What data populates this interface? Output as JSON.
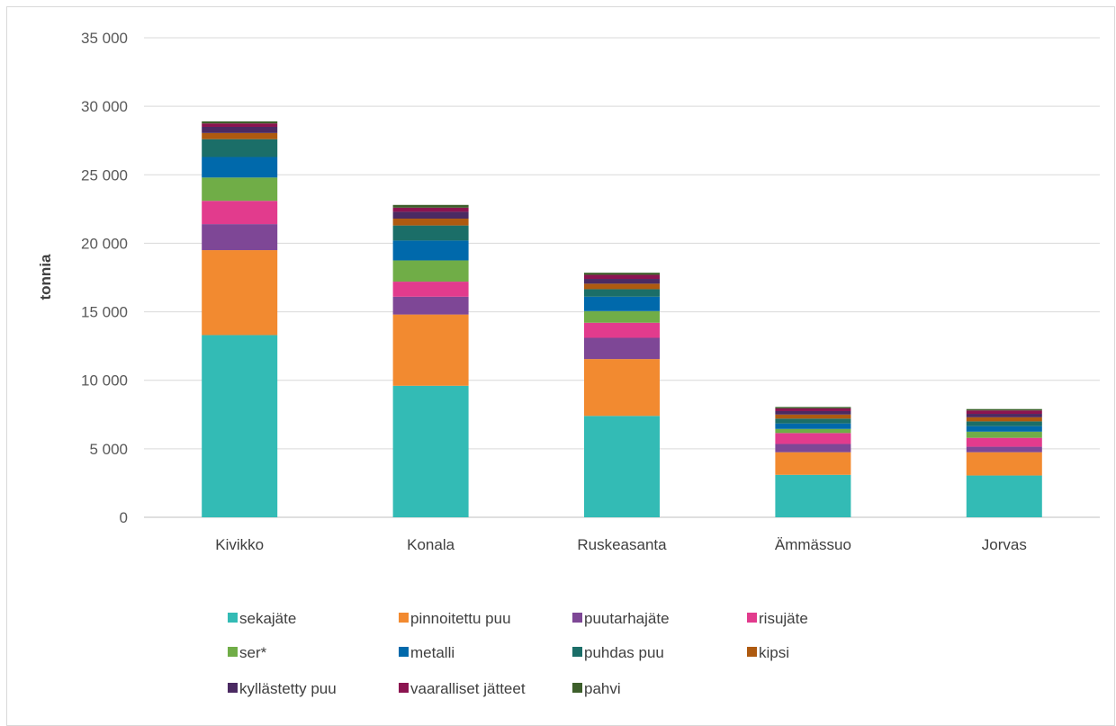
{
  "chart_data": {
    "type": "bar",
    "stacked": true,
    "title": "",
    "xlabel": "",
    "ylabel": "tonnia",
    "ylim": [
      0,
      35000
    ],
    "yticks": [
      0,
      5000,
      10000,
      15000,
      20000,
      25000,
      30000,
      35000
    ],
    "ytick_labels": [
      "0",
      "5 000",
      "10 000",
      "15 000",
      "20 000",
      "25 000",
      "30 000",
      "35 000"
    ],
    "grid": true,
    "legend_position": "bottom",
    "categories": [
      "Kivikko",
      "Konala",
      "Ruskeasanta",
      "Ämmässuo",
      "Jorvas"
    ],
    "series": [
      {
        "name": "sekajäte",
        "color": "#33bbb5",
        "values": [
          13300,
          9600,
          7400,
          3100,
          3050
        ]
      },
      {
        "name": "pinnoitettu puu",
        "color": "#f28a30",
        "values": [
          6200,
          5200,
          4150,
          1650,
          1700
        ]
      },
      {
        "name": "puutarhajäte",
        "color": "#7e4796",
        "values": [
          1900,
          1300,
          1550,
          600,
          400
        ]
      },
      {
        "name": "risujäte",
        "color": "#e23b8d",
        "values": [
          1700,
          1100,
          1100,
          800,
          650
        ]
      },
      {
        "name": "ser*",
        "color": "#70ad47",
        "values": [
          1700,
          1550,
          850,
          300,
          450
        ]
      },
      {
        "name": "metalli",
        "color": "#0069ab",
        "values": [
          1500,
          1450,
          1050,
          400,
          400
        ]
      },
      {
        "name": "puhdas puu",
        "color": "#1b6e68",
        "values": [
          1300,
          1100,
          550,
          350,
          350
        ]
      },
      {
        "name": "kipsi",
        "color": "#ae5a10",
        "values": [
          450,
          500,
          400,
          300,
          300
        ]
      },
      {
        "name": "kyllästetty puu",
        "color": "#4b2a62",
        "values": [
          450,
          500,
          350,
          250,
          250
        ]
      },
      {
        "name": "vaaralliset jätteet",
        "color": "#8b1450",
        "values": [
          250,
          300,
          300,
          200,
          250
        ]
      },
      {
        "name": "pahvi",
        "color": "#3d5f2b",
        "values": [
          150,
          200,
          150,
          100,
          100
        ]
      }
    ]
  }
}
